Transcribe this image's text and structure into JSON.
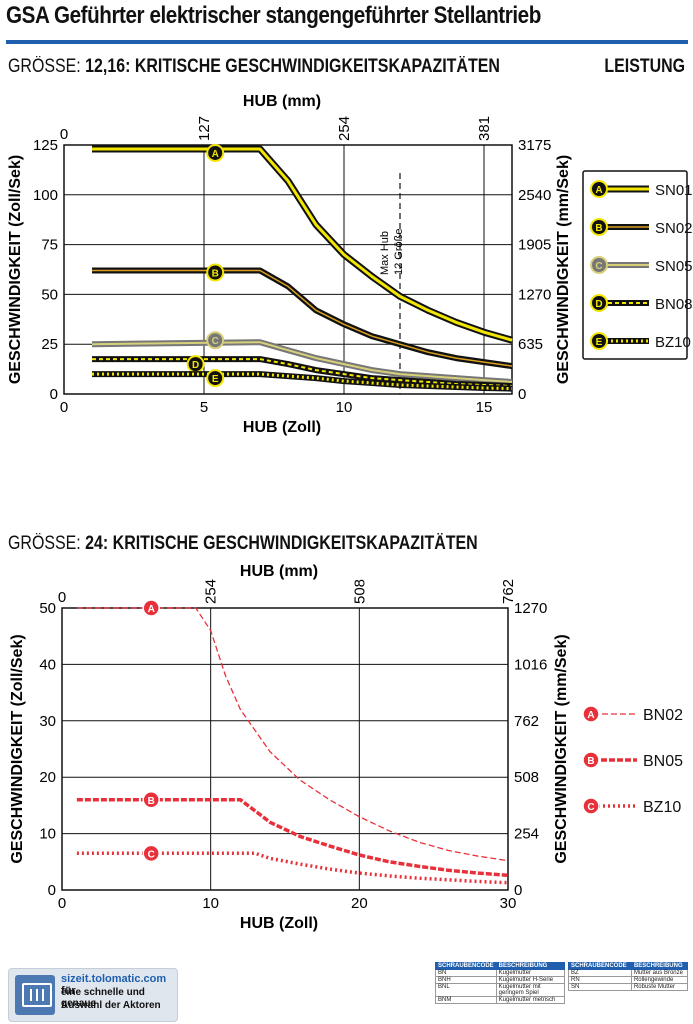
{
  "page": {
    "title": "GSA Geführter elektrischer stangengeführter Stellantrieb",
    "leistung": "LEISTUNG"
  },
  "section1": {
    "pre": "GRÖSSE:",
    "heading": "12,16: KRITISCHE GESCHWINDIGKEITSKAPAZITÄTEN"
  },
  "section2": {
    "pre": "GRÖSSE:",
    "heading": "24: KRITISCHE GESCHWINDIGKEITSKAPAZITÄTEN"
  },
  "chart_data": [
    {
      "type": "line",
      "xlabel": "HUB (Zoll)",
      "x2label": "HUB (mm)",
      "ylabel": "GESCHWINDIGKEIT (Zoll/Sek)",
      "y2label": "GESCHWINDIGKEIT (mm/Sek)",
      "xlim": [
        0,
        16
      ],
      "ylim": [
        0,
        125
      ],
      "xticks": [
        "0",
        "5",
        "10",
        "15"
      ],
      "yticks": [
        "0",
        "25",
        "50",
        "75",
        "100",
        "125"
      ],
      "x2ticks": [
        "0",
        "127",
        "254",
        "381"
      ],
      "y2ticks": [
        "0",
        "635",
        "1270",
        "1905",
        "2540",
        "3175"
      ],
      "grid": true,
      "legend_position": "right",
      "annotation": {
        "x": 12,
        "text": [
          "Max Hub",
          "12 Größe"
        ]
      },
      "colors": {
        "yellow": "#f2e600",
        "dark": "#2a1a0a",
        "gray": "#9a9a9a",
        "accent": "#1f5fae"
      },
      "series": [
        {
          "name": "SN01",
          "letter": "A",
          "style": "yellow",
          "points": [
            [
              1,
              123
            ],
            [
              7,
              123
            ],
            [
              8,
              107
            ],
            [
              9,
              85
            ],
            [
              10,
              70
            ],
            [
              11,
              59
            ],
            [
              12,
              49
            ],
            [
              13,
              42
            ],
            [
              14,
              36
            ],
            [
              15,
              31
            ],
            [
              16,
              27
            ]
          ]
        },
        {
          "name": "SN02",
          "letter": "B",
          "style": "orange",
          "points": [
            [
              1,
              62
            ],
            [
              7,
              62
            ],
            [
              8,
              54
            ],
            [
              9,
              42
            ],
            [
              10,
              35
            ],
            [
              11,
              29
            ],
            [
              12,
              25
            ],
            [
              13,
              21
            ],
            [
              14,
              18
            ],
            [
              15,
              16
            ],
            [
              16,
              14
            ]
          ]
        },
        {
          "name": "SN05",
          "letter": "C",
          "style": "gray",
          "points": [
            [
              1,
              25
            ],
            [
              7,
              26
            ],
            [
              8,
              22
            ],
            [
              9,
              18
            ],
            [
              10,
              15
            ],
            [
              11,
              12
            ],
            [
              12,
              10
            ],
            [
              13,
              9
            ],
            [
              14,
              8
            ],
            [
              15,
              7
            ],
            [
              16,
              6
            ]
          ]
        },
        {
          "name": "BN08",
          "letter": "D",
          "style": "dashed",
          "points": [
            [
              1,
              17.5
            ],
            [
              7,
              17.5
            ],
            [
              8,
              15
            ],
            [
              9,
              12
            ],
            [
              10,
              10
            ],
            [
              11,
              8
            ],
            [
              12,
              7
            ],
            [
              13,
              6
            ],
            [
              14,
              5
            ],
            [
              15,
              4.5
            ],
            [
              16,
              4
            ]
          ]
        },
        {
          "name": "BZ10",
          "letter": "E",
          "style": "dotted",
          "points": [
            [
              1,
              10
            ],
            [
              7,
              10
            ],
            [
              8,
              9
            ],
            [
              9,
              8
            ],
            [
              10,
              6.5
            ],
            [
              11,
              5.5
            ],
            [
              12,
              4.5
            ],
            [
              13,
              4
            ],
            [
              14,
              3.5
            ],
            [
              15,
              3
            ],
            [
              16,
              2.7
            ]
          ]
        }
      ]
    },
    {
      "type": "line",
      "xlabel": "HUB (Zoll)",
      "x2label": "HUB (mm)",
      "ylabel": "GESCHWINDIGKEIT (Zoll/Sek)",
      "y2label": "GESCHWINDIGKEIT (mm/Sek)",
      "xlim": [
        0,
        30
      ],
      "ylim": [
        0,
        50
      ],
      "xticks": [
        "0",
        "10",
        "20",
        "30"
      ],
      "yticks": [
        "0",
        "10",
        "20",
        "30",
        "40",
        "50"
      ],
      "x2ticks": [
        "0",
        "254",
        "508",
        "762"
      ],
      "y2ticks": [
        "0",
        "254",
        "508",
        "762",
        "1016",
        "1270"
      ],
      "grid": true,
      "legend_position": "right",
      "colors": {
        "red": "#e8303a"
      },
      "series": [
        {
          "name": "BN02",
          "letter": "A",
          "style": "thin-dash",
          "points": [
            [
              1,
              50
            ],
            [
              9,
              50
            ],
            [
              10,
              46
            ],
            [
              11,
              38
            ],
            [
              12,
              32
            ],
            [
              14,
              24.5
            ],
            [
              16,
              19.5
            ],
            [
              18,
              16
            ],
            [
              20,
              13
            ],
            [
              22,
              10.5
            ],
            [
              24,
              8.5
            ],
            [
              26,
              7
            ],
            [
              28,
              6
            ],
            [
              30,
              5.2
            ]
          ]
        },
        {
          "name": "BN05",
          "letter": "B",
          "style": "thick-dash",
          "points": [
            [
              1,
              16
            ],
            [
              12,
              16
            ],
            [
              13,
              14
            ],
            [
              14,
              12
            ],
            [
              16,
              9.5
            ],
            [
              18,
              7.8
            ],
            [
              20,
              6.2
            ],
            [
              22,
              5
            ],
            [
              24,
              4.2
            ],
            [
              26,
              3.5
            ],
            [
              28,
              3
            ],
            [
              30,
              2.6
            ]
          ]
        },
        {
          "name": "BZ10",
          "letter": "C",
          "style": "dotted",
          "points": [
            [
              1,
              6.5
            ],
            [
              13,
              6.5
            ],
            [
              14,
              5.6
            ],
            [
              16,
              4.6
            ],
            [
              18,
              3.7
            ],
            [
              20,
              3
            ],
            [
              22,
              2.5
            ],
            [
              24,
              2.1
            ],
            [
              26,
              1.8
            ],
            [
              28,
              1.5
            ],
            [
              30,
              1.3
            ]
          ]
        }
      ]
    }
  ],
  "footer": {
    "url": "sizeit.tolomatic.com",
    "url_suffix": " für",
    "text1": "eine schnelle und genaue",
    "text2": "Auswahl der Aktoren",
    "table_header": [
      "SCHRAUBENCODE",
      "BESCHREIBUNG"
    ],
    "table1": [
      [
        "BN",
        "Kugelmutter"
      ],
      [
        "BNH",
        "Kugelmutter H-Serie"
      ],
      [
        "BNL",
        "Kugelmutter mit geringem Spiel"
      ],
      [
        "BNM",
        "Kugelmutter metrisch"
      ]
    ],
    "table2": [
      [
        "BZ",
        "Mutter aus Bronze"
      ],
      [
        "RN",
        "Rollengewinde"
      ],
      [
        "SN",
        "Robuste Mutter"
      ]
    ]
  }
}
